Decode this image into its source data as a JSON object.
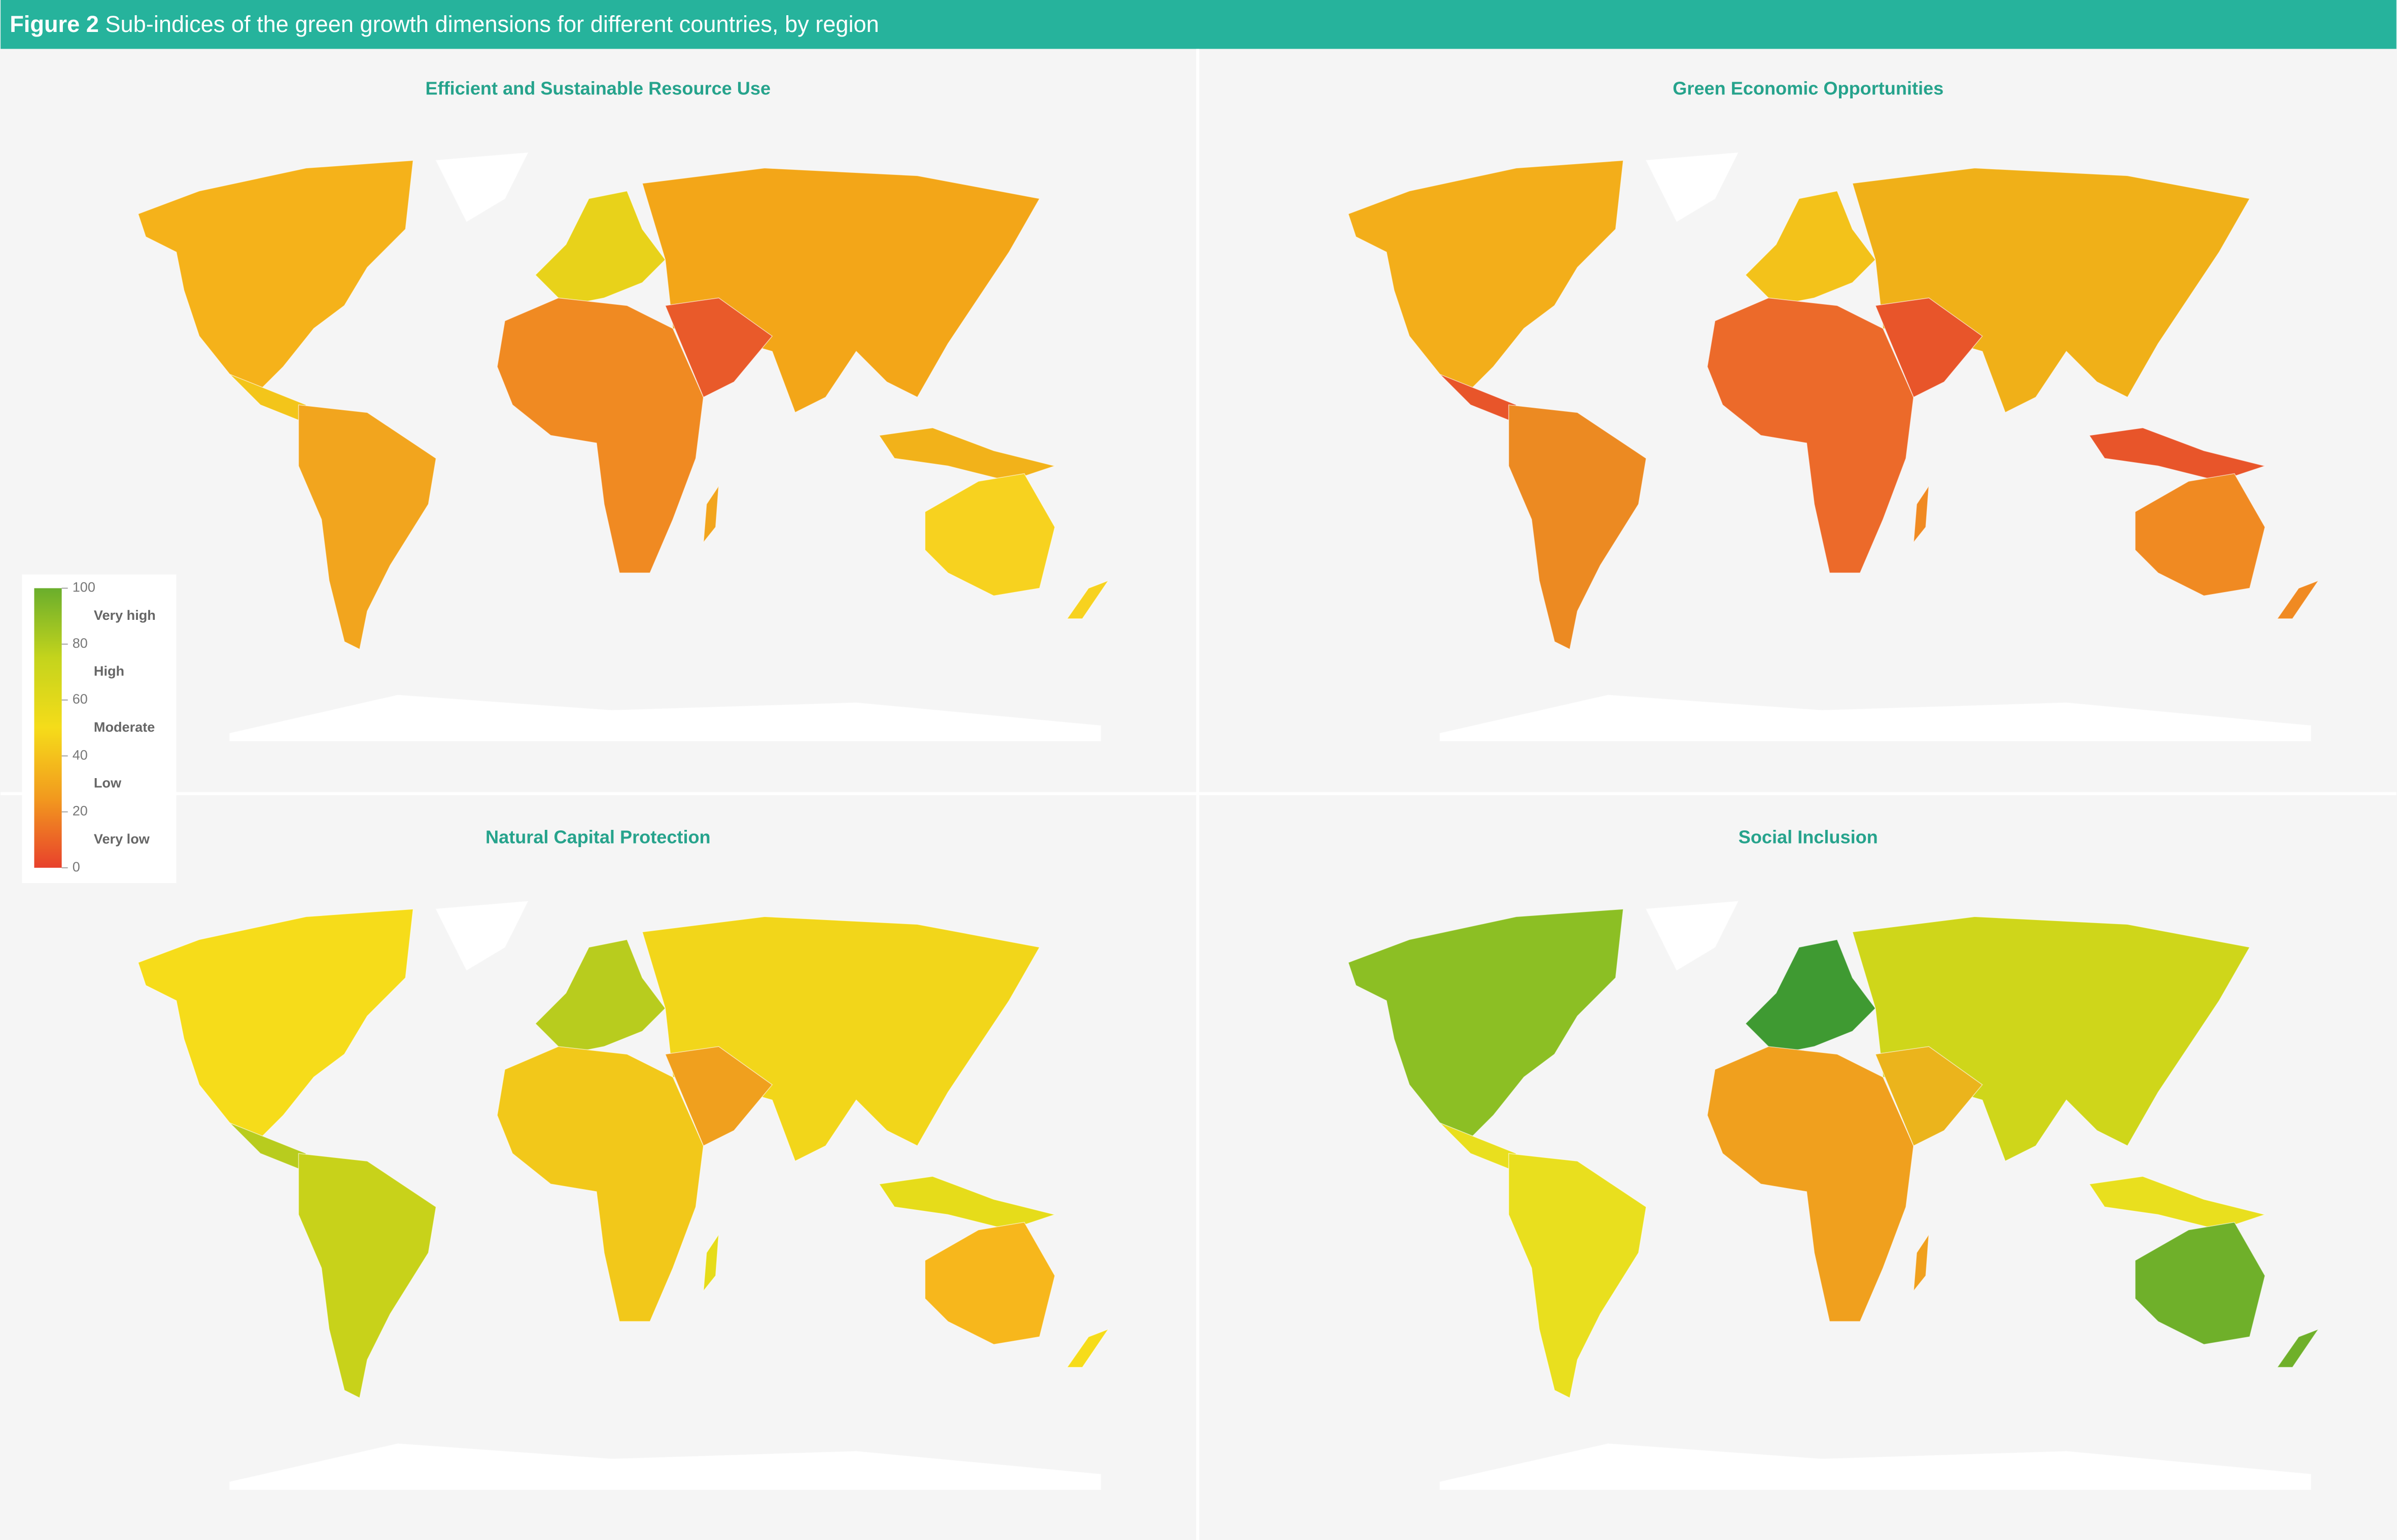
{
  "header": {
    "figure_label": "Figure 2",
    "title": "Sub-indices of the green growth dimensions for different countries, by region"
  },
  "panels": [
    {
      "title": "Efficient and Sustainable Resource Use"
    },
    {
      "title": "Green Economic Opportunities"
    },
    {
      "title": "Natural Capital Protection"
    },
    {
      "title": "Social Inclusion"
    }
  ],
  "legend": {
    "ylim": [
      0,
      100
    ],
    "ticks": [
      0,
      20,
      40,
      60,
      80,
      100
    ],
    "categories": [
      "Very low",
      "Low",
      "Moderate",
      "High",
      "Very high"
    ]
  }
}
